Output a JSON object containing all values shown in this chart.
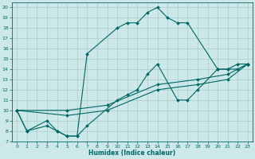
{
  "title": "",
  "xlabel": "Humidex (Indice chaleur)",
  "xlim": [
    -0.5,
    23.5
  ],
  "ylim": [
    7,
    20.5
  ],
  "xticks": [
    0,
    1,
    2,
    3,
    4,
    5,
    6,
    7,
    8,
    9,
    10,
    11,
    12,
    13,
    14,
    15,
    16,
    17,
    18,
    19,
    20,
    21,
    22,
    23
  ],
  "yticks": [
    7,
    8,
    9,
    10,
    11,
    12,
    13,
    14,
    15,
    16,
    17,
    18,
    19,
    20
  ],
  "bg_color": "#cce8e8",
  "line_color": "#006666",
  "grid_color": "#aacccc",
  "curves": [
    {
      "x": [
        0,
        1,
        3,
        4,
        5,
        6,
        7,
        10,
        11,
        12,
        13,
        14,
        15,
        16,
        17,
        20,
        21,
        22,
        23
      ],
      "y": [
        10,
        8,
        8.5,
        8,
        7.5,
        7.5,
        15.5,
        18,
        18.5,
        18.5,
        19.5,
        20,
        19,
        18.5,
        18.5,
        14,
        14,
        14.5,
        14.5
      ]
    },
    {
      "x": [
        0,
        1,
        3,
        4,
        5,
        6,
        7,
        10,
        11,
        12,
        13,
        14,
        16,
        17,
        18,
        20,
        21,
        22,
        23
      ],
      "y": [
        10,
        8,
        9,
        8,
        7.5,
        7.5,
        8.5,
        11,
        11.5,
        12,
        13.5,
        14.5,
        11,
        11,
        12,
        14,
        14,
        14,
        14.5
      ]
    },
    {
      "x": [
        0,
        5,
        9,
        14,
        18,
        21,
        23
      ],
      "y": [
        10,
        10,
        10.5,
        12.5,
        13,
        13.5,
        14.5
      ]
    },
    {
      "x": [
        0,
        5,
        9,
        14,
        18,
        21,
        23
      ],
      "y": [
        10,
        9.5,
        10,
        12,
        12.5,
        13,
        14.5
      ]
    }
  ]
}
